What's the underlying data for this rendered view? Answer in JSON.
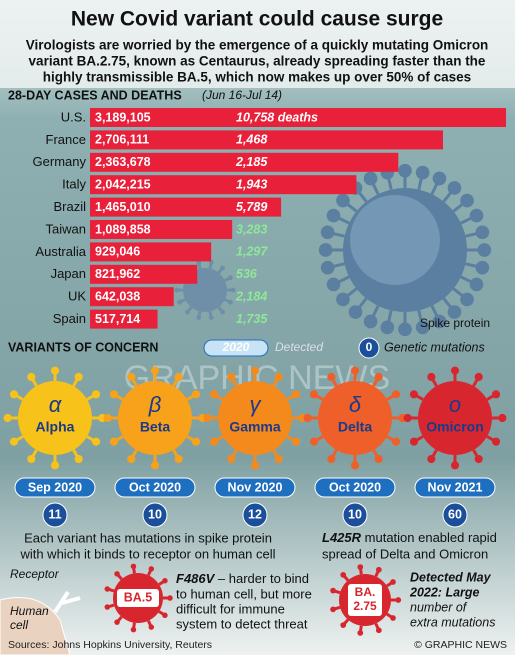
{
  "header": {
    "title": "New Covid variant could cause surge",
    "subtitle": [
      "Virologists are worried by the emergence of a quickly mutating Omicron",
      "variant BA.2.75, known as Centaurus, already spreading faster than the",
      "highly transmissible BA.5, which now makes up over 50% of cases"
    ]
  },
  "chart_data": {
    "type": "bar",
    "orientation": "horizontal",
    "title": "28-DAY CASES AND DEATHS",
    "subtitle": "(Jun 16-Jul 14)",
    "color": "#e8203a",
    "categories": [
      "U.S.",
      "France",
      "Germany",
      "Italy",
      "Brazil",
      "Taiwan",
      "Australia",
      "Japan",
      "UK",
      "Spain"
    ],
    "values": [
      3189105,
      2706111,
      2363678,
      2042215,
      1465010,
      1089858,
      929046,
      821962,
      642038,
      517714
    ],
    "value_labels": [
      "3,189,105",
      "2,706,111",
      "2,363,678",
      "2,042,215",
      "1,465,010",
      "1,089,858",
      "929,046",
      "821,962",
      "642,038",
      "517,714"
    ],
    "deaths": [
      10758,
      1468,
      2185,
      1943,
      5789,
      3283,
      1297,
      536,
      2184,
      1735
    ],
    "deaths_labels": [
      "10,758  deaths",
      "1,468",
      "2,185",
      "1,943",
      "5,789",
      "3,283",
      "1,297",
      "536",
      "2,184",
      "1,735"
    ]
  },
  "illustration": {
    "spike": "Spike protein",
    "watermark": "GRAPHIC NEWS"
  },
  "variants": {
    "title": "VARIANTS OF CONCERN",
    "legend": {
      "date": "2020",
      "date_label": "Detected",
      "count": 0,
      "count_label": "Genetic mutations"
    },
    "items": [
      {
        "symbol": "α",
        "name": "Alpha",
        "detected": "Sep 2020",
        "mutations": 11,
        "color": "#f7c21a"
      },
      {
        "symbol": "β",
        "name": "Beta",
        "detected": "Oct 2020",
        "mutations": 10,
        "color": "#f7a21a"
      },
      {
        "symbol": "γ",
        "name": "Gamma",
        "detected": "Nov 2020",
        "mutations": 12,
        "color": "#f58a1c"
      },
      {
        "symbol": "δ",
        "name": "Delta",
        "detected": "Oct 2020",
        "mutations": 10,
        "color": "#ef5f2a"
      },
      {
        "symbol": "ο",
        "name": "Omicron",
        "detected": "Nov 2021",
        "mutations": 60,
        "color": "#d8262f"
      }
    ]
  },
  "notes": {
    "left": [
      "Each variant has mutations in spike protein",
      "with which it binds to receptor on human cell"
    ],
    "right": {
      "bold": "L425R",
      "lines": [
        " mutation enabled rapid",
        "spread of Delta and Omicron"
      ]
    },
    "receptor": "Receptor",
    "cell": [
      "Human",
      "cell"
    ],
    "ba5": {
      "label": "BA.5",
      "bold": "F486V",
      "lines": [
        " – harder to bind",
        "to human cell, but more",
        "difficult for immune",
        "system to detect threat"
      ]
    },
    "ba275": {
      "label": [
        "BA.",
        "2.75"
      ],
      "lines": [
        "Detected May",
        "2022: Large",
        "number of",
        "extra mutations"
      ]
    }
  },
  "footer": {
    "sources": "Sources: Johns Hopkins University, Reuters",
    "credit": "© GRAPHIC NEWS"
  }
}
